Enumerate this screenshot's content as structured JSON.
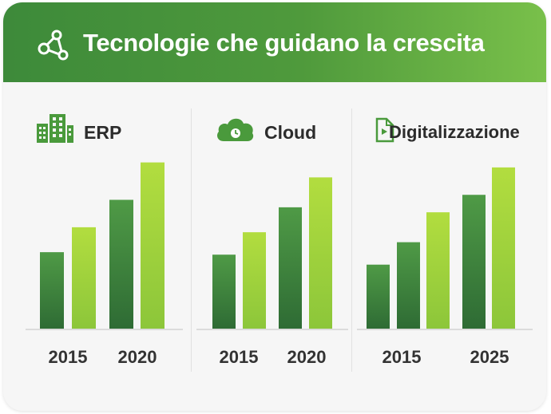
{
  "header": {
    "title": "Tecnologie che guidano la crescita",
    "icon": "network-icon"
  },
  "colors": {
    "header_start": "#3d8a3a",
    "header_end": "#79c04a",
    "bar_dark_top": "#4f9a46",
    "bar_dark_bottom": "#2e6b34",
    "bar_light_top": "#b2dd3f",
    "bar_light_bottom": "#8cc63a"
  },
  "chart_data": [
    {
      "type": "bar",
      "title": "ERP",
      "icon": "building-icon",
      "categories": [
        "2015",
        "2020"
      ],
      "series": [
        {
          "name": "bar-1",
          "values": [
            31,
            52
          ]
        },
        {
          "name": "bar-2",
          "values": [
            41,
            67
          ]
        }
      ],
      "ylim": [
        0,
        80
      ],
      "grid": false
    },
    {
      "type": "bar",
      "title": "Cloud",
      "icon": "cloud-icon",
      "categories": [
        "2015",
        "2020"
      ],
      "series": [
        {
          "name": "bar-1",
          "values": [
            30,
            49
          ]
        },
        {
          "name": "bar-2",
          "values": [
            39,
            61
          ]
        }
      ],
      "ylim": [
        0,
        80
      ],
      "grid": false
    },
    {
      "type": "bar",
      "title": "Digitalizzazione",
      "icon": "digital-document-icon",
      "categories": [
        "2015",
        "2025"
      ],
      "series": [
        {
          "name": "bar-1",
          "values": [
            26,
            54
          ]
        },
        {
          "name": "bar-2",
          "values": [
            35,
            65
          ]
        },
        {
          "name": "bar-3",
          "values": [
            47,
            null
          ]
        }
      ],
      "ylim": [
        0,
        80
      ],
      "grid": false
    }
  ]
}
